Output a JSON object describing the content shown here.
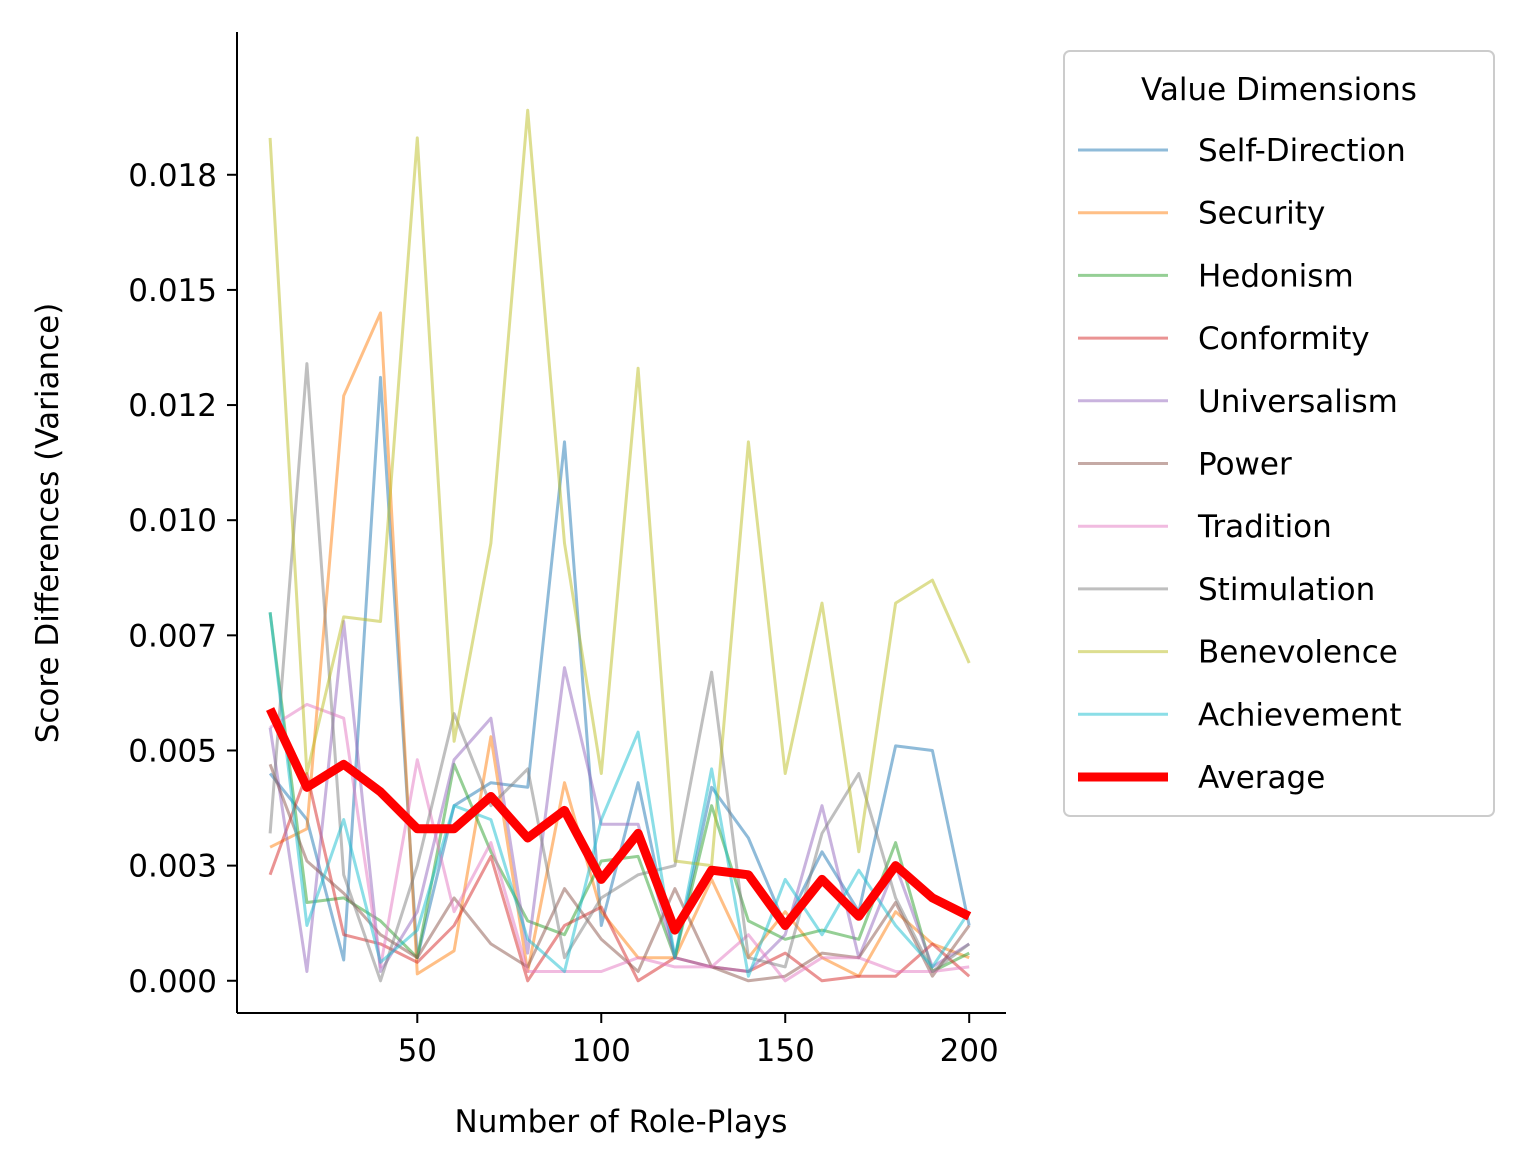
{
  "chart_data": {
    "type": "line",
    "xlabel": "Number of Role-Plays",
    "ylabel": "Score Differences (Variance)",
    "xlim": [
      1,
      210
    ],
    "ylim": [
      -0.0007,
      0.0206
    ],
    "xticks": [
      50,
      100,
      150,
      200
    ],
    "xtick_labels": [
      "50",
      "100",
      "150",
      "200"
    ],
    "yticks": [
      0.0,
      0.0025,
      0.005,
      0.0075,
      0.01,
      0.0125,
      0.015,
      0.0175
    ],
    "ytick_labels": [
      "0.000",
      "0.003",
      "0.005",
      "0.007",
      "0.010",
      "0.012",
      "0.015",
      "0.018"
    ],
    "grid": false,
    "legend": {
      "title": "Value Dimensions",
      "placement": "outside-right"
    },
    "x": [
      10,
      20,
      30,
      40,
      50,
      60,
      70,
      80,
      90,
      100,
      110,
      120,
      130,
      140,
      150,
      160,
      170,
      180,
      190,
      200
    ],
    "series": [
      {
        "name": "Self-Direction",
        "color": "#1f77b4",
        "values": [
          0.0045,
          0.0035,
          0.00045,
          0.0131,
          0.0005,
          0.0038,
          0.0043,
          0.0042,
          0.0117,
          0.0012,
          0.0043,
          0.0005,
          0.0042,
          0.0031,
          0.0012,
          0.0028,
          0.0015,
          0.0051,
          0.005,
          0.0012
        ]
      },
      {
        "name": "Security",
        "color": "#ff7f0e",
        "values": [
          0.0029,
          0.0033,
          0.0127,
          0.0145,
          0.00015,
          0.00065,
          0.0053,
          0.0002,
          0.0043,
          0.0015,
          0.0005,
          0.0005,
          0.0022,
          0.0005,
          0.0015,
          0.0005,
          0.0001,
          0.0015,
          0.0008,
          0.0005
        ]
      },
      {
        "name": "Hedonism",
        "color": "#2ca02c",
        "values": [
          0.008,
          0.0017,
          0.0018,
          0.0013,
          0.0005,
          0.0047,
          0.0028,
          0.0013,
          0.001,
          0.0026,
          0.0027,
          0.0005,
          0.0038,
          0.0013,
          0.0009,
          0.0011,
          0.0009,
          0.003,
          0.0002,
          0.0006
        ]
      },
      {
        "name": "Conformity",
        "color": "#d62728",
        "values": [
          0.0023,
          0.0045,
          0.001,
          0.0008,
          0.0004,
          0.0012,
          0.0027,
          0.0,
          0.0012,
          0.0016,
          0.0,
          0.0005,
          0.0003,
          0.0002,
          0.0006,
          0.0,
          0.0001,
          0.0001,
          0.0008,
          0.0001
        ]
      },
      {
        "name": "Universalism",
        "color": "#9467bd",
        "values": [
          0.0055,
          0.0002,
          0.0078,
          0.0002,
          0.0015,
          0.0048,
          0.0057,
          0.0006,
          0.0068,
          0.0034,
          0.0034,
          0.0005,
          0.0003,
          0.0002,
          0.001,
          0.0038,
          0.0005,
          0.0025,
          0.0003,
          0.0008
        ]
      },
      {
        "name": "Power",
        "color": "#8c564b",
        "values": [
          0.0047,
          0.0026,
          0.0019,
          0.001,
          0.0005,
          0.0018,
          0.0008,
          0.0003,
          0.002,
          0.0009,
          0.0002,
          0.002,
          0.0003,
          0.0,
          0.0001,
          0.0006,
          0.0005,
          0.0017,
          0.0001,
          0.0012
        ]
      },
      {
        "name": "Tradition",
        "color": "#e377c2",
        "values": [
          0.0055,
          0.006,
          0.0057,
          0.0003,
          0.0048,
          0.0015,
          0.003,
          0.0002,
          0.0002,
          0.0002,
          0.0005,
          0.0003,
          0.0003,
          0.001,
          0.0,
          0.0005,
          0.0005,
          0.0002,
          0.0002,
          0.0003
        ]
      },
      {
        "name": "Stimulation",
        "color": "#7f7f7f",
        "values": [
          0.0032,
          0.0134,
          0.0023,
          0.0,
          0.0025,
          0.0058,
          0.0038,
          0.0046,
          0.0005,
          0.0018,
          0.0023,
          0.0025,
          0.0067,
          0.0005,
          0.0003,
          0.0032,
          0.0045,
          0.0018,
          0.0002,
          0.0008
        ]
      },
      {
        "name": "Benevolence",
        "color": "#bcbd22",
        "values": [
          0.0183,
          0.0045,
          0.0079,
          0.0078,
          0.0183,
          0.0052,
          0.0095,
          0.0189,
          0.0095,
          0.0045,
          0.0133,
          0.0026,
          0.0025,
          0.0117,
          0.0045,
          0.0082,
          0.0028,
          0.0082,
          0.0087,
          0.0069
        ]
      },
      {
        "name": "Achievement",
        "color": "#17becf",
        "values": [
          0.008,
          0.0012,
          0.0035,
          0.0004,
          0.0011,
          0.0038,
          0.0035,
          0.0009,
          0.0002,
          0.0035,
          0.0054,
          0.0005,
          0.0046,
          0.0001,
          0.0022,
          0.001,
          0.0024,
          0.0012,
          0.0003,
          0.0015
        ]
      },
      {
        "name": "Average",
        "color": "#ff0000",
        "values": [
          0.0059,
          0.0042,
          0.0047,
          0.0041,
          0.0033,
          0.0033,
          0.004,
          0.0031,
          0.0037,
          0.0022,
          0.0032,
          0.0011,
          0.0024,
          0.0023,
          0.0012,
          0.0022,
          0.0014,
          0.0025,
          0.0018,
          0.0014
        ]
      }
    ]
  }
}
